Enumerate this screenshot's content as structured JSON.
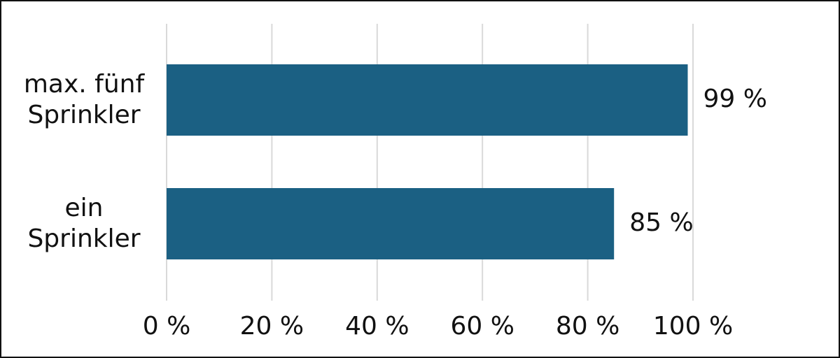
{
  "chart_data": {
    "type": "bar",
    "orientation": "horizontal",
    "categories": [
      "max. fünf Sprinkler",
      "ein Sprinkler"
    ],
    "values": [
      99,
      85
    ],
    "value_labels": [
      "99 %",
      "85 %"
    ],
    "color": "#1b6083",
    "xlim": [
      0,
      100
    ],
    "xticks": [
      {
        "value": 0,
        "label": "0 %"
      },
      {
        "value": 20,
        "label": "20 %"
      },
      {
        "value": 40,
        "label": "40 %"
      },
      {
        "value": 60,
        "label": "60 %"
      },
      {
        "value": 80,
        "label": "80 %"
      },
      {
        "value": 100,
        "label": "100 %"
      }
    ],
    "grid": true
  }
}
